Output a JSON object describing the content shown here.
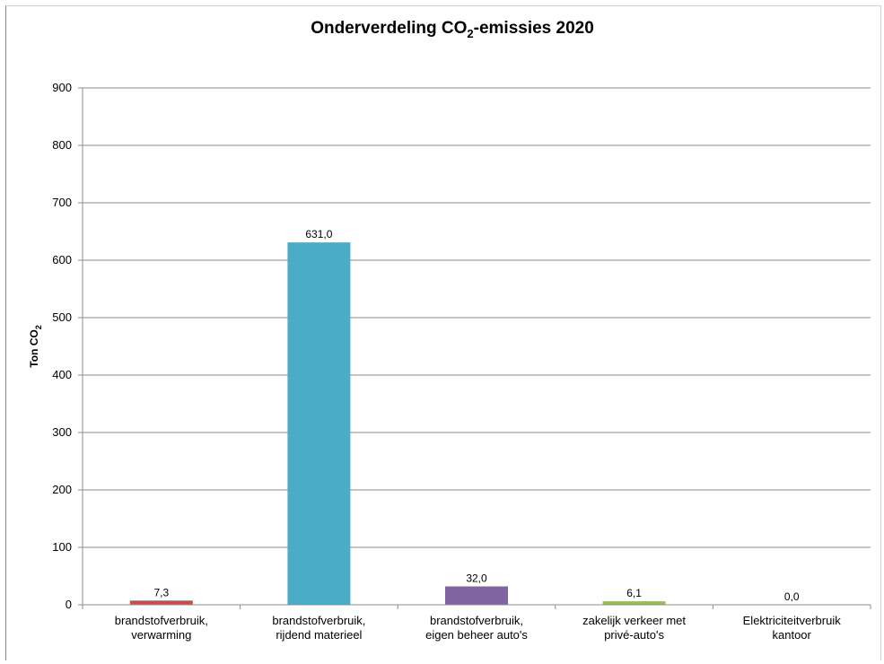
{
  "chart_data": {
    "type": "bar",
    "title_main": "Onderverdeling CO",
    "title_sub": "2",
    "title_rest": "-emissies 2020",
    "ylabel_main": "Ton CO",
    "ylabel_sub": "2",
    "ylim": [
      0,
      900
    ],
    "yticks": [
      "0",
      "100",
      "200",
      "300",
      "400",
      "500",
      "600",
      "700",
      "800",
      "900"
    ],
    "grid": true,
    "categories": [
      [
        "brandstofverbruik,",
        "verwarming"
      ],
      [
        "brandstofverbruik,",
        "rijdend materieel"
      ],
      [
        "brandstofverbruik,",
        "eigen beheer auto's"
      ],
      [
        "zakelijk verkeer met",
        "privé-auto's"
      ],
      [
        "Elektriciteitverbruik",
        "kantoor"
      ]
    ],
    "values": [
      7.3,
      631.0,
      32.0,
      6.1,
      0.0
    ],
    "value_labels": [
      "7,3",
      "631,0",
      "32,0",
      "6,1",
      "0,0"
    ],
    "colors": [
      "#c0504d",
      "#4bacc6",
      "#8064a2",
      "#9bbb59",
      "#f79646"
    ]
  }
}
